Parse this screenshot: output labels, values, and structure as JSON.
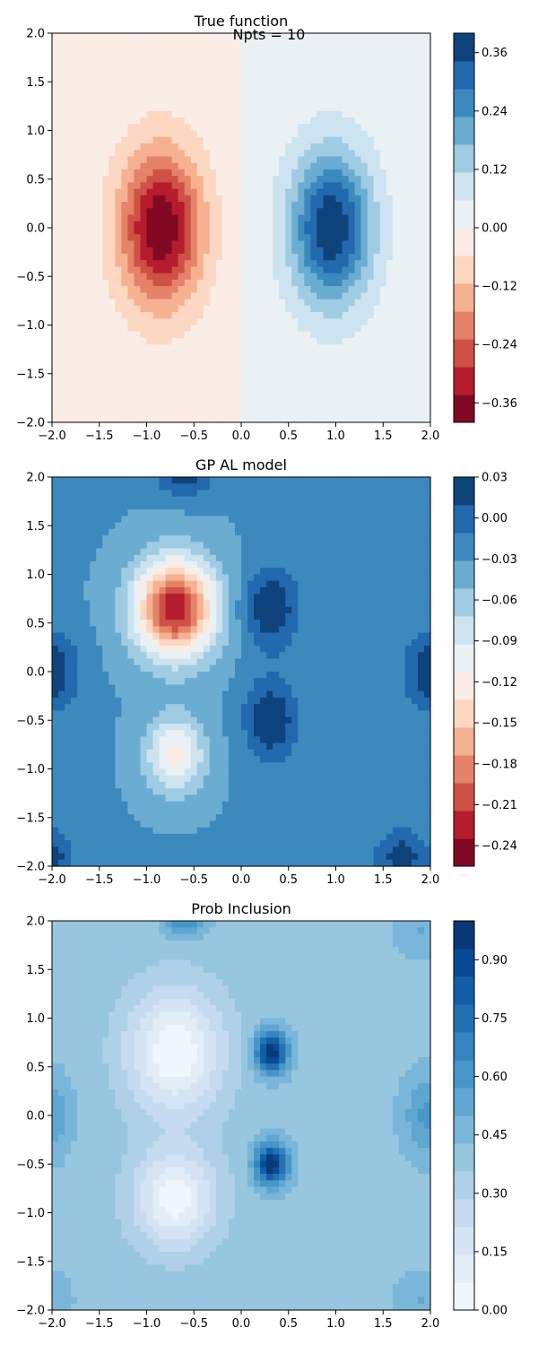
{
  "suptitle": "Npts = 10",
  "chart_data": [
    {
      "type": "heatmap",
      "title": "True function",
      "xlabel": "",
      "ylabel": "",
      "xlim": [
        -2.0,
        2.0
      ],
      "ylim": [
        -2.0,
        2.0
      ],
      "xticks": [
        "−2.0",
        "−1.5",
        "−1.0",
        "−0.5",
        "0.0",
        "0.5",
        "1.0",
        "1.5",
        "2.0"
      ],
      "yticks": [
        "−2.0",
        "−1.5",
        "−1.0",
        "−0.5",
        "0.0",
        "0.5",
        "1.0",
        "1.5",
        "2.0"
      ],
      "colormap": "RdBu",
      "colorbar": {
        "range": [
          -0.4,
          0.4
        ],
        "ticks": [
          {
            "value": 0.36,
            "label": "0.36"
          },
          {
            "value": 0.24,
            "label": "0.24"
          },
          {
            "value": 0.12,
            "label": "0.12"
          },
          {
            "value": 0.0,
            "label": "0.00"
          },
          {
            "value": -0.12,
            "label": "−0.12"
          },
          {
            "value": -0.24,
            "label": "−0.24"
          },
          {
            "value": -0.36,
            "label": "−0.36"
          }
        ]
      },
      "features": [
        {
          "x": -0.85,
          "y": 0.0,
          "value": -0.4,
          "sx": 0.3,
          "sy": 0.55
        },
        {
          "x": 0.95,
          "y": 0.0,
          "value": 0.4,
          "sx": 0.3,
          "sy": 0.55
        }
      ]
    },
    {
      "type": "heatmap",
      "title": "GP AL model",
      "xlabel": "",
      "ylabel": "",
      "xlim": [
        -2.0,
        2.0
      ],
      "ylim": [
        -2.0,
        2.0
      ],
      "xticks": [
        "−2.0",
        "−1.5",
        "−1.0",
        "−0.5",
        "0.0",
        "0.5",
        "1.0",
        "1.5",
        "2.0"
      ],
      "yticks": [
        "−2.0",
        "−1.5",
        "−1.0",
        "−0.5",
        "0.0",
        "0.5",
        "1.0",
        "1.5",
        "2.0"
      ],
      "colormap": "RdBu",
      "colorbar": {
        "range": [
          -0.255,
          0.03
        ],
        "ticks": [
          {
            "value": 0.03,
            "label": "0.03"
          },
          {
            "value": 0.0,
            "label": "0.00"
          },
          {
            "value": -0.03,
            "label": "−0.03"
          },
          {
            "value": -0.06,
            "label": "−0.06"
          },
          {
            "value": -0.09,
            "label": "−0.09"
          },
          {
            "value": -0.12,
            "label": "−0.12"
          },
          {
            "value": -0.15,
            "label": "−0.15"
          },
          {
            "value": -0.18,
            "label": "−0.18"
          },
          {
            "value": -0.21,
            "label": "−0.21"
          },
          {
            "value": -0.24,
            "label": "−0.24"
          }
        ]
      },
      "base_value": -0.03,
      "features": [
        {
          "x": -0.7,
          "y": 0.65,
          "value": -0.23,
          "sx": 0.3,
          "sy": 0.35
        },
        {
          "x": -0.7,
          "y": -0.85,
          "value": -0.12,
          "sx": 0.22,
          "sy": 0.28
        },
        {
          "x": 0.32,
          "y": 0.65,
          "value": 0.03,
          "sx": 0.2,
          "sy": 0.3
        },
        {
          "x": 0.32,
          "y": -0.5,
          "value": 0.03,
          "sx": 0.2,
          "sy": 0.3
        },
        {
          "x": -2.0,
          "y": 0.0,
          "value": 0.025,
          "sx": 0.2,
          "sy": 0.3
        },
        {
          "x": 2.0,
          "y": 0.0,
          "value": 0.025,
          "sx": 0.2,
          "sy": 0.3
        },
        {
          "x": -0.6,
          "y": 2.0,
          "value": 0.02,
          "sx": 0.2,
          "sy": 0.15
        },
        {
          "x": 1.7,
          "y": -1.9,
          "value": 0.02,
          "sx": 0.2,
          "sy": 0.2
        },
        {
          "x": -2.0,
          "y": -1.9,
          "value": 0.02,
          "sx": 0.15,
          "sy": 0.2
        }
      ]
    },
    {
      "type": "heatmap",
      "title": "Prob Inclusion",
      "xlabel": "",
      "ylabel": "",
      "xlim": [
        -2.0,
        2.0
      ],
      "ylim": [
        -2.0,
        2.0
      ],
      "xticks": [
        "−2.0",
        "−1.5",
        "−1.0",
        "−0.5",
        "0.0",
        "0.5",
        "1.0",
        "1.5",
        "2.0"
      ],
      "yticks": [
        "−2.0",
        "−1.5",
        "−1.0",
        "−0.5",
        "0.0",
        "0.5",
        "1.0",
        "1.5",
        "2.0"
      ],
      "colormap": "Blues",
      "colorbar": {
        "range": [
          0.0,
          1.0
        ],
        "ticks": [
          {
            "value": 0.9,
            "label": "0.90"
          },
          {
            "value": 0.75,
            "label": "0.75"
          },
          {
            "value": 0.6,
            "label": "0.60"
          },
          {
            "value": 0.45,
            "label": "0.45"
          },
          {
            "value": 0.3,
            "label": "0.30"
          },
          {
            "value": 0.15,
            "label": "0.15"
          },
          {
            "value": 0.0,
            "label": "0.00"
          }
        ]
      },
      "base_value": 0.4,
      "features": [
        {
          "x": -0.7,
          "y": 0.65,
          "value": 0.0,
          "sx": 0.35,
          "sy": 0.45
        },
        {
          "x": -0.7,
          "y": -0.85,
          "value": 0.02,
          "sx": 0.3,
          "sy": 0.35
        },
        {
          "x": 0.32,
          "y": 0.65,
          "value": 1.0,
          "sx": 0.12,
          "sy": 0.15
        },
        {
          "x": 0.32,
          "y": -0.5,
          "value": 1.0,
          "sx": 0.12,
          "sy": 0.15
        },
        {
          "x": -2.0,
          "y": 0.0,
          "value": 0.55,
          "sx": 0.15,
          "sy": 0.3
        },
        {
          "x": 2.0,
          "y": 0.0,
          "value": 0.6,
          "sx": 0.2,
          "sy": 0.3
        },
        {
          "x": -0.6,
          "y": 2.0,
          "value": 0.65,
          "sx": 0.15,
          "sy": 0.12
        },
        {
          "x": 1.9,
          "y": 1.9,
          "value": 0.5,
          "sx": 0.2,
          "sy": 0.2
        },
        {
          "x": 1.9,
          "y": -1.9,
          "value": 0.5,
          "sx": 0.2,
          "sy": 0.2
        },
        {
          "x": -2.0,
          "y": -1.9,
          "value": 0.5,
          "sx": 0.15,
          "sy": 0.2
        }
      ]
    }
  ]
}
